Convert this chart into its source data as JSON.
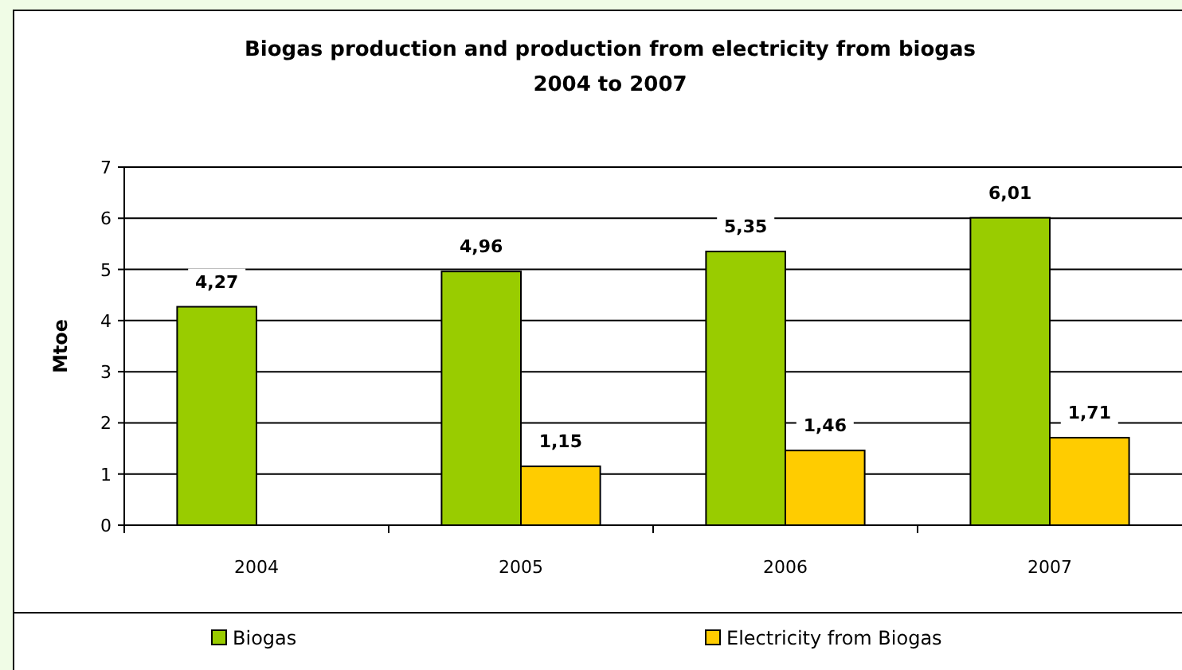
{
  "chart_data": {
    "type": "bar",
    "title": "Biogas production and production from electricity from biogas\n2004 to 2007",
    "ylabel": "Mtoe",
    "categories": [
      "2004",
      "2005",
      "2006",
      "2007"
    ],
    "series": [
      {
        "name": "Biogas",
        "color": "#99cc00",
        "values": [
          4.27,
          4.96,
          5.35,
          6.01
        ],
        "value_labels": [
          "4,27",
          "4,96",
          "5,35",
          "6,01"
        ]
      },
      {
        "name": "Electricity from Biogas",
        "color": "#ffcc00",
        "values": [
          null,
          1.15,
          1.46,
          1.71
        ],
        "value_labels": [
          null,
          "1,15",
          "1,46",
          "1,71"
        ]
      }
    ],
    "ylim": [
      0,
      7
    ],
    "yticks": [
      0,
      1,
      2,
      3,
      4,
      5,
      6,
      7
    ],
    "grid": "y",
    "legend": "bottom"
  }
}
